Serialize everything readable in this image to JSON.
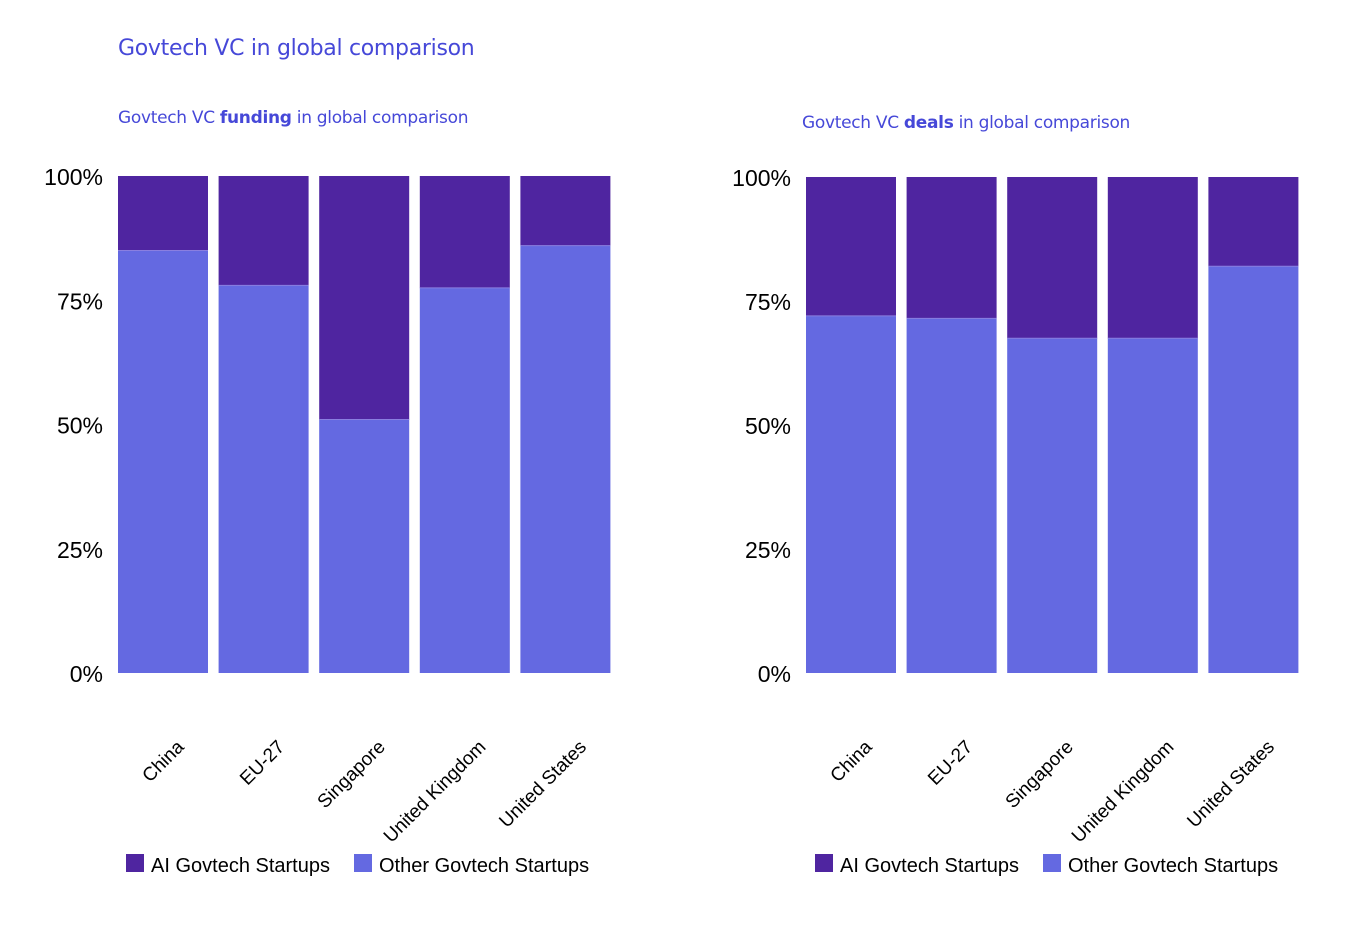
{
  "title": "Govtech VC in global comparison",
  "colors": {
    "ai": "#4f25a0",
    "other": "#6469e1",
    "title": "#4648d8"
  },
  "chart_data": [
    {
      "type": "bar",
      "stacked": true,
      "title_parts": {
        "pre": "Govtech VC ",
        "bold": "funding",
        "post": " in global comparison"
      },
      "categories": [
        "China",
        "EU-27",
        "Singapore",
        "United Kingdom",
        "United States"
      ],
      "series": [
        {
          "name": "Other Govtech Startups",
          "values": [
            85,
            78,
            51,
            77.5,
            86
          ]
        },
        {
          "name": "AI Govtech Startups",
          "values": [
            15,
            22,
            49,
            22.5,
            14
          ]
        }
      ],
      "yticks": [
        "0%",
        "25%",
        "50%",
        "75%",
        "100%"
      ],
      "ylim": [
        0,
        100
      ],
      "legend": [
        "AI Govtech Startups",
        "Other Govtech Startups"
      ],
      "legend_position": "bottom",
      "grid": false
    },
    {
      "type": "bar",
      "stacked": true,
      "title_parts": {
        "pre": "Govtech VC ",
        "bold": "deals",
        "post": " in global comparison"
      },
      "categories": [
        "China",
        "EU-27",
        "Singapore",
        "United Kingdom",
        "United States"
      ],
      "series": [
        {
          "name": "Other Govtech Startups",
          "values": [
            72,
            71.5,
            67.5,
            67.5,
            82
          ]
        },
        {
          "name": "AI Govtech Startups",
          "values": [
            28,
            28.5,
            32.5,
            32.5,
            18
          ]
        }
      ],
      "yticks": [
        "0%",
        "25%",
        "50%",
        "75%",
        "100%"
      ],
      "ylim": [
        0,
        100
      ],
      "legend": [
        "AI Govtech Startups",
        "Other Govtech Startups"
      ],
      "legend_position": "bottom",
      "grid": false
    }
  ]
}
